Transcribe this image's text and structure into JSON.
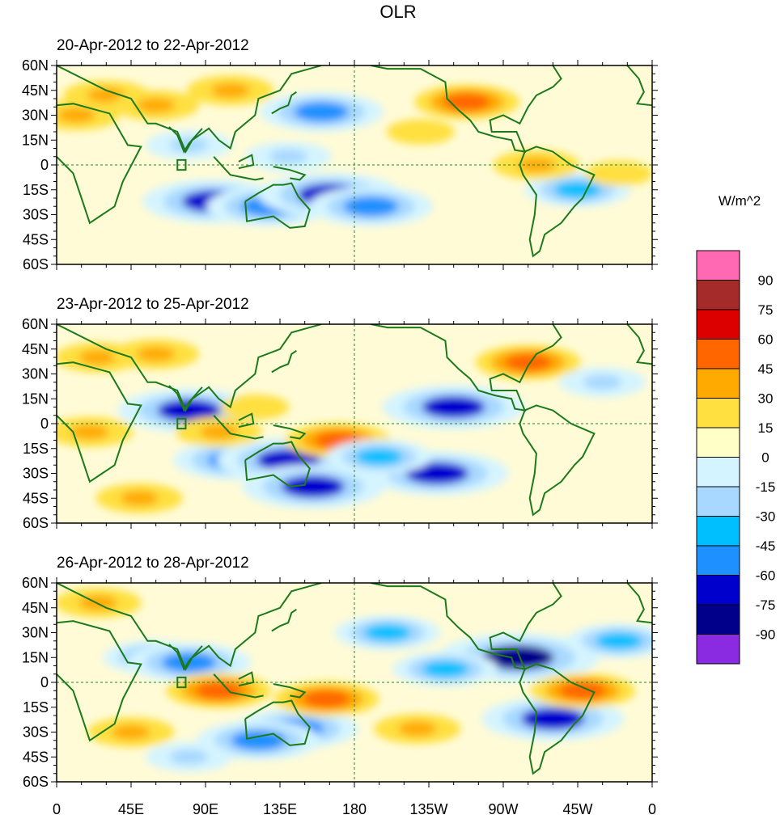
{
  "chart_data": {
    "type": "heatmap",
    "title": "OLR",
    "units_label": "W/m^2",
    "x_tick_labels": [
      "0",
      "45E",
      "90E",
      "135E",
      "180",
      "135W",
      "90W",
      "45W",
      "0"
    ],
    "y_tick_labels": [
      "60N",
      "45N",
      "30N",
      "15N",
      "0",
      "15S",
      "30S",
      "45S",
      "60S"
    ],
    "lon_range": [
      0,
      360
    ],
    "lat_range": [
      -60,
      60
    ],
    "colorbar": {
      "levels": [
        90,
        75,
        60,
        45,
        30,
        15,
        0,
        -15,
        -30,
        -45,
        -60,
        -75,
        -90
      ],
      "colors": [
        "#ff69b4",
        "#a52a2a",
        "#dd0000",
        "#ff6600",
        "#ffaa00",
        "#ffe040",
        "#ffffc8",
        "#d4f4ff",
        "#a8d8ff",
        "#00bfff",
        "#1e90ff",
        "#0000cd",
        "#00008b",
        "#8a2be2"
      ]
    },
    "panels": [
      {
        "label": "20-Apr-2012 to 22-Apr-2012",
        "anomalies": [
          {
            "lon": 30,
            "lat": 42,
            "value": 30
          },
          {
            "lon": 60,
            "lat": 36,
            "value": 30
          },
          {
            "lon": 105,
            "lat": 45,
            "value": 30
          },
          {
            "lon": 160,
            "lat": 32,
            "value": -60
          },
          {
            "lon": 80,
            "lat": 12,
            "value": -30
          },
          {
            "lon": 95,
            "lat": -22,
            "value": -75
          },
          {
            "lon": 128,
            "lat": -25,
            "value": -60
          },
          {
            "lon": 165,
            "lat": -18,
            "value": -75
          },
          {
            "lon": 190,
            "lat": -25,
            "value": -60
          },
          {
            "lon": 248,
            "lat": 38,
            "value": 45
          },
          {
            "lon": 315,
            "lat": -15,
            "value": -45
          },
          {
            "lon": 12,
            "lat": 30,
            "value": 30
          },
          {
            "lon": 220,
            "lat": 20,
            "value": 15
          },
          {
            "lon": 290,
            "lat": 0,
            "value": 30
          },
          {
            "lon": 140,
            "lat": 5,
            "value": -30
          },
          {
            "lon": 340,
            "lat": -5,
            "value": 15
          }
        ]
      },
      {
        "label": "23-Apr-2012 to 25-Apr-2012",
        "anomalies": [
          {
            "lon": 25,
            "lat": 40,
            "value": 30
          },
          {
            "lon": 60,
            "lat": 42,
            "value": 30
          },
          {
            "lon": 80,
            "lat": 8,
            "value": -75
          },
          {
            "lon": 108,
            "lat": -22,
            "value": -60
          },
          {
            "lon": 140,
            "lat": -22,
            "value": -75
          },
          {
            "lon": 155,
            "lat": -38,
            "value": -75
          },
          {
            "lon": 170,
            "lat": -10,
            "value": 45
          },
          {
            "lon": 240,
            "lat": 10,
            "value": -75
          },
          {
            "lon": 230,
            "lat": -30,
            "value": -75
          },
          {
            "lon": 98,
            "lat": -5,
            "value": 30
          },
          {
            "lon": 285,
            "lat": 37,
            "value": 45
          },
          {
            "lon": 195,
            "lat": -20,
            "value": -45
          },
          {
            "lon": 20,
            "lat": -5,
            "value": 30
          },
          {
            "lon": 120,
            "lat": 10,
            "value": 15
          },
          {
            "lon": 330,
            "lat": 25,
            "value": -30
          },
          {
            "lon": 50,
            "lat": -45,
            "value": 30
          }
        ]
      },
      {
        "label": "26-Apr-2012 to 28-Apr-2012",
        "anomalies": [
          {
            "lon": 25,
            "lat": 48,
            "value": 30
          },
          {
            "lon": 60,
            "lat": 15,
            "value": -45
          },
          {
            "lon": 80,
            "lat": 12,
            "value": -60
          },
          {
            "lon": 98,
            "lat": -5,
            "value": 45
          },
          {
            "lon": 145,
            "lat": -28,
            "value": -60
          },
          {
            "lon": 163,
            "lat": -10,
            "value": 45
          },
          {
            "lon": 122,
            "lat": -35,
            "value": -60
          },
          {
            "lon": 279,
            "lat": 15,
            "value": -90
          },
          {
            "lon": 300,
            "lat": -22,
            "value": -75
          },
          {
            "lon": 318,
            "lat": -5,
            "value": 45
          },
          {
            "lon": 218,
            "lat": -28,
            "value": 30
          },
          {
            "lon": 200,
            "lat": 30,
            "value": -45
          },
          {
            "lon": 340,
            "lat": 25,
            "value": -45
          },
          {
            "lon": 235,
            "lat": 8,
            "value": -45
          },
          {
            "lon": 45,
            "lat": -30,
            "value": 30
          },
          {
            "lon": 80,
            "lat": -45,
            "value": -30
          }
        ]
      }
    ]
  }
}
